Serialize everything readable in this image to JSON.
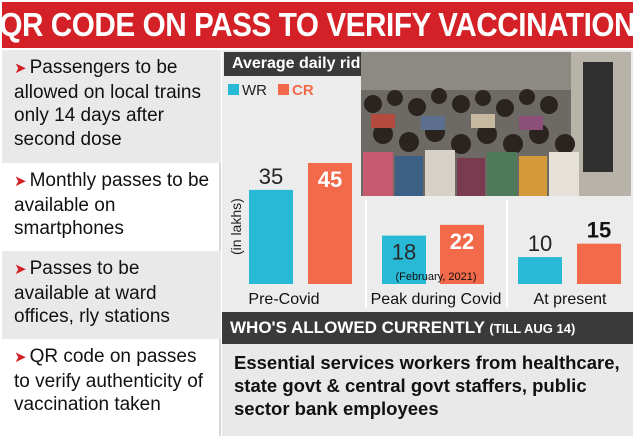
{
  "title": "QR CODE ON PASS TO VERIFY VACCINATION",
  "bullets": [
    "Passengers to be allowed on local trains only 14 days after second dose",
    "Monthly passes to be available on smartphones",
    "Passes to be available at ward offices, rly stations",
    "QR code on passes to verify authenticity of vaccination taken"
  ],
  "who_allowed": {
    "heading": "WHO'S ALLOWED CURRENTLY",
    "heading_note": "(TILL AUG 14)",
    "text": "Essential services workers from healthcare, state govt & central govt staffers, public sector bank employees"
  },
  "colors": {
    "brand_red": "#d42127",
    "wr": "#27b9d6",
    "cr": "#f26a4a",
    "panel": "#ececec",
    "dark": "#3a3a3a"
  },
  "chart_data": {
    "type": "bar",
    "title": "Average daily ridership",
    "ylabel": "(in lakhs)",
    "categories": [
      "Pre-Covid",
      "Peak during Covid",
      "At present"
    ],
    "category_notes": [
      "",
      "(February, 2021)",
      ""
    ],
    "series": [
      {
        "name": "WR",
        "values": [
          35,
          18,
          10
        ]
      },
      {
        "name": "CR",
        "values": [
          45,
          22,
          15
        ]
      }
    ],
    "ylim": [
      0,
      50
    ],
    "grid": false,
    "legend": "top-left"
  }
}
